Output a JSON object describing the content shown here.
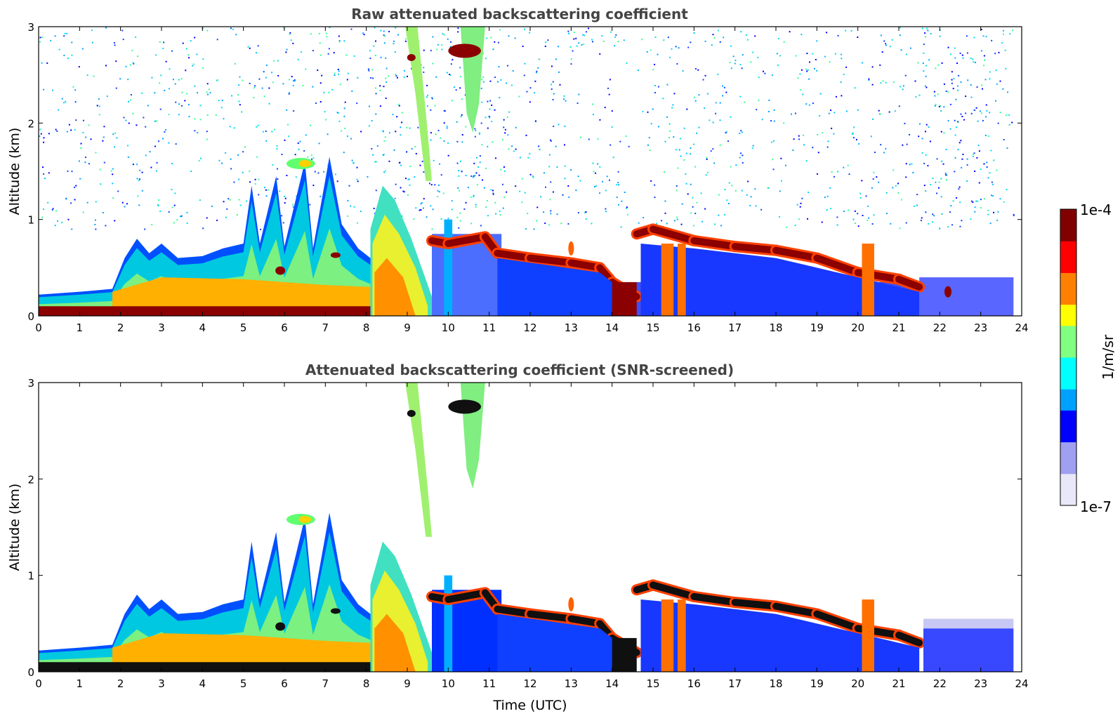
{
  "chart_data": [
    {
      "type": "heatmap",
      "title": "Raw attenuated backscattering coefficient",
      "xlabel": "",
      "ylabel": "Altitude (km)",
      "xlim": [
        0,
        24
      ],
      "ylim": [
        0,
        3
      ],
      "x_ticks": [
        "0",
        "1",
        "2",
        "3",
        "4",
        "5",
        "6",
        "7",
        "8",
        "9",
        "10",
        "11",
        "12",
        "13",
        "14",
        "15",
        "16",
        "17",
        "18",
        "19",
        "20",
        "21",
        "22",
        "23",
        "24"
      ],
      "y_ticks": [
        "0",
        "1",
        "2",
        "3"
      ],
      "background_noise": true,
      "data_coverage_hours": [
        0,
        23.8
      ],
      "features": [
        {
          "kind": "surface_aerosol_layer",
          "t_start": 0,
          "t_end": 8.1,
          "alt_top_km": 0.1,
          "level": "high"
        },
        {
          "kind": "boundary_layer",
          "t": [
            0,
            1.8,
            2.4,
            4,
            5,
            6,
            7,
            8.1
          ],
          "top_km": [
            0.2,
            0.25,
            0.75,
            0.6,
            0.8,
            0.75,
            0.7,
            0.6
          ],
          "level": "medium"
        },
        {
          "kind": "plumes",
          "t": [
            5.2,
            5.8,
            6.5,
            7.1
          ],
          "top_km": [
            1.45,
            1.45,
            1.6,
            1.65
          ],
          "level": "medium"
        },
        {
          "kind": "cloud",
          "t_start": 6.1,
          "t_end": 6.8,
          "alt_km": 1.58,
          "level": "medium"
        },
        {
          "kind": "aerosol_dome",
          "t_start": 8.1,
          "t_end": 9.6,
          "top_km": 1.4,
          "level": "medium-high"
        },
        {
          "kind": "cirrus_fallstreak",
          "t_start": 8.9,
          "t_end": 9.5,
          "alt_top_km": 3.0,
          "alt_bottom_km": 1.4,
          "level": "medium"
        },
        {
          "kind": "high_cloud",
          "t_start": 10.0,
          "t_end": 10.8,
          "alt_km": 2.75,
          "level": "saturated"
        },
        {
          "kind": "cloud_base",
          "t": [
            9.6,
            11.0,
            12.0,
            13.7,
            14.5,
            15.0,
            17.0,
            19.0,
            21.5
          ],
          "alt_km": [
            0.75,
            0.75,
            0.55,
            0.45,
            0.12,
            0.75,
            0.65,
            0.55,
            0.28
          ],
          "level": "saturated"
        }
      ]
    },
    {
      "type": "heatmap",
      "title": "Attenuated backscattering coefficient (SNR-screened)",
      "xlabel": "Time (UTC)",
      "ylabel": "Altitude (km)",
      "xlim": [
        0,
        24
      ],
      "ylim": [
        0,
        3
      ],
      "x_ticks": [
        "0",
        "1",
        "2",
        "3",
        "4",
        "5",
        "6",
        "7",
        "8",
        "9",
        "10",
        "11",
        "12",
        "13",
        "14",
        "15",
        "16",
        "17",
        "18",
        "19",
        "20",
        "21",
        "22",
        "23",
        "24"
      ],
      "y_ticks": [
        "0",
        "1",
        "2",
        "3"
      ],
      "background_noise": false,
      "data_coverage_hours": [
        0,
        23.8
      ],
      "saturated_color": "#000000"
    }
  ],
  "colorbar": {
    "label": "1/m/sr",
    "max_label": "1e-4",
    "min_label": "1e-7",
    "colors": [
      "#e8e8f8",
      "#a0a0f0",
      "#0000ff",
      "#00a0ff",
      "#00ffff",
      "#80ff80",
      "#ffff00",
      "#ff8000",
      "#ff0000",
      "#800000"
    ]
  }
}
